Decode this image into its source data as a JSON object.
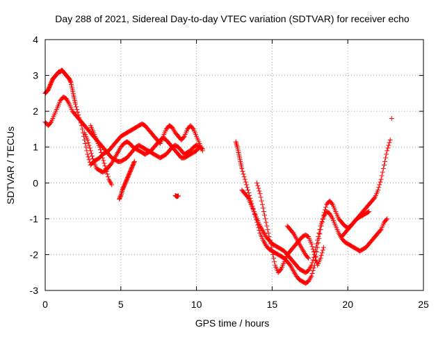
{
  "chart_data": {
    "type": "scatter",
    "title": "Day 288 of 2021, Sidereal Day-to-day VTEC variation (SDTVAR) for receiver echo",
    "xlabel": "GPS time / hours",
    "ylabel": "SDTVAR / TECUs",
    "xlim": [
      0,
      25
    ],
    "ylim": [
      -3,
      4
    ],
    "xticks": [
      "0",
      "5",
      "10",
      "15",
      "20",
      "25"
    ],
    "yticks": [
      "-3",
      "-2",
      "-1",
      "0",
      "1",
      "2",
      "3",
      "4"
    ],
    "grid": true,
    "marker": "+",
    "series": [
      {
        "name": "SDTVAR",
        "color": "#ff0000",
        "segments": [
          {
            "x": [
              0.0,
              0.1,
              0.2,
              0.3,
              0.4,
              0.5,
              0.6,
              0.7,
              0.8,
              0.9,
              1.0,
              1.1,
              1.2,
              1.3,
              1.4,
              1.5,
              1.6,
              1.7,
              1.8,
              1.9,
              2.0,
              2.2,
              2.4,
              2.6,
              2.8,
              3.0,
              3.2,
              3.4,
              3.6,
              3.8,
              4.0,
              4.2,
              4.4,
              4.6,
              4.8,
              5.0,
              5.2,
              5.4,
              5.6,
              5.8,
              6.0,
              6.2,
              6.4,
              6.6,
              6.8,
              7.0,
              7.2,
              7.4,
              7.6,
              7.8,
              8.0,
              8.2,
              8.4,
              8.6,
              8.8,
              9.0,
              9.2,
              9.4,
              9.6,
              9.8,
              10.0,
              10.2,
              10.4
            ],
            "y": [
              2.5,
              2.55,
              2.6,
              2.7,
              2.8,
              2.9,
              2.95,
              3.0,
              3.05,
              3.1,
              3.1,
              3.15,
              3.1,
              3.05,
              3.0,
              2.95,
              2.9,
              2.8,
              2.6,
              2.4,
              2.2,
              1.9,
              1.6,
              1.2,
              0.8,
              0.5,
              0.6,
              0.65,
              0.7,
              0.8,
              0.85,
              0.9,
              1.0,
              1.1,
              1.2,
              1.3,
              1.35,
              1.4,
              1.45,
              1.5,
              1.55,
              1.6,
              1.65,
              1.6,
              1.5,
              1.4,
              1.3,
              1.2,
              1.1,
              1.3,
              1.5,
              1.6,
              1.55,
              1.4,
              1.3,
              1.2,
              1.3,
              1.5,
              1.6,
              1.5,
              1.3,
              1.1,
              0.9
            ]
          },
          {
            "x": [
              0.0,
              0.2,
              0.4,
              0.6,
              0.8,
              1.0,
              1.2,
              1.4,
              1.6,
              1.8,
              2.0,
              2.2,
              2.4,
              2.6,
              2.8,
              3.0,
              3.2,
              3.4,
              3.6,
              3.8,
              4.0,
              4.2,
              4.4,
              4.6,
              4.8,
              5.0,
              5.2,
              5.4,
              5.6,
              5.8,
              6.0,
              6.2,
              6.4,
              6.6,
              6.8,
              7.0,
              7.2,
              7.4,
              7.6,
              7.8,
              8.0,
              8.2,
              8.4,
              8.6,
              8.8,
              9.0,
              9.2,
              9.4,
              9.6,
              9.8,
              10.0,
              10.2,
              10.4
            ],
            "y": [
              1.7,
              1.6,
              1.7,
              1.9,
              2.1,
              2.3,
              2.4,
              2.35,
              2.2,
              2.0,
              1.9,
              1.8,
              1.7,
              1.6,
              1.5,
              1.4,
              1.3,
              1.2,
              1.1,
              1.0,
              0.9,
              0.8,
              0.7,
              0.65,
              0.6,
              0.6,
              0.65,
              0.7,
              0.8,
              0.9,
              1.0,
              1.05,
              1.0,
              0.95,
              0.9,
              0.85,
              0.8,
              0.75,
              0.7,
              0.75,
              0.8,
              0.9,
              1.0,
              1.05,
              1.0,
              0.9,
              0.8,
              0.85,
              0.9,
              1.0,
              1.05,
              1.0,
              0.95
            ]
          },
          {
            "x": [
              2.6,
              2.8,
              3.0,
              3.2,
              3.4,
              3.6,
              3.8,
              4.0,
              4.2,
              4.4,
              4.6,
              4.8,
              5.0,
              5.2,
              5.4,
              5.6,
              5.8,
              6.0,
              6.2,
              6.4,
              6.6,
              6.8,
              7.0,
              7.2,
              7.4,
              7.6,
              7.8,
              8.0,
              8.2,
              8.4,
              8.6,
              8.8,
              9.0,
              9.2,
              9.4,
              9.6,
              9.8,
              10.0,
              10.2
            ],
            "y": [
              1.4,
              1.2,
              0.9,
              0.6,
              0.4,
              0.35,
              0.3,
              0.35,
              0.45,
              0.55,
              0.7,
              0.85,
              1.0,
              1.1,
              1.15,
              1.1,
              1.0,
              0.95,
              0.9,
              0.85,
              0.8,
              0.85,
              0.9,
              1.0,
              1.1,
              1.2,
              1.25,
              1.2,
              1.1,
              1.0,
              0.9,
              0.8,
              0.7,
              0.7,
              0.75,
              0.8,
              0.85,
              0.9,
              1.0
            ]
          },
          {
            "x": [
              3.0,
              3.2,
              3.4,
              3.6,
              3.8,
              4.0,
              4.2,
              4.4
            ],
            "y": [
              1.6,
              1.4,
              1.2,
              1.0,
              0.7,
              0.4,
              0.1,
              -0.05
            ]
          },
          {
            "x": [
              4.9,
              5.0,
              5.1,
              5.2,
              5.3,
              5.4,
              5.5,
              5.6,
              5.7,
              5.8,
              5.9
            ],
            "y": [
              -0.45,
              -0.35,
              -0.2,
              -0.1,
              0.0,
              0.1,
              0.2,
              0.3,
              0.4,
              0.5,
              0.6
            ]
          },
          {
            "x": [
              8.6,
              8.7,
              8.8
            ],
            "y": [
              -0.35,
              -0.38,
              -0.36
            ]
          },
          {
            "x": [
              12.6,
              12.7,
              12.8,
              12.9,
              13.0,
              13.2,
              13.4,
              13.6,
              13.8,
              14.0,
              14.2,
              14.4,
              14.6,
              14.8,
              15.0,
              15.2,
              15.4,
              15.6,
              15.8,
              16.0,
              16.2,
              16.4,
              16.6,
              16.8,
              17.0,
              17.2,
              17.4,
              17.6,
              17.8,
              18.0,
              18.2,
              18.4,
              18.6,
              18.8,
              19.0,
              19.2,
              19.4,
              19.6,
              19.8,
              20.0,
              20.2,
              20.4,
              20.6,
              20.8,
              21.0,
              21.2,
              21.4,
              21.6,
              21.8,
              22.0,
              22.2,
              22.4,
              22.6,
              22.8
            ],
            "y": [
              1.15,
              1.0,
              0.8,
              0.6,
              0.4,
              0.1,
              -0.2,
              -0.5,
              -0.8,
              -1.1,
              -1.4,
              -1.6,
              -1.75,
              -1.85,
              -1.9,
              -1.95,
              -2.0,
              -2.05,
              -2.1,
              -2.2,
              -2.3,
              -2.45,
              -2.6,
              -2.7,
              -2.75,
              -2.8,
              -2.75,
              -2.6,
              -2.3,
              -1.8,
              -1.3,
              -0.9,
              -0.6,
              -0.5,
              -0.6,
              -0.8,
              -1.0,
              -1.1,
              -1.2,
              -1.25,
              -1.2,
              -1.1,
              -1.0,
              -0.9,
              -0.8,
              -0.7,
              -0.6,
              -0.5,
              -0.4,
              -0.2,
              0.1,
              0.5,
              0.9,
              1.2
            ]
          },
          {
            "x": [
              13.0,
              13.2,
              13.4,
              13.6,
              13.8,
              14.0,
              14.2,
              14.4,
              14.6,
              14.8,
              15.0,
              15.2,
              15.4,
              15.6,
              15.8,
              16.0,
              16.2,
              16.4,
              16.6,
              16.8,
              17.0,
              17.2,
              17.4,
              17.6,
              17.8,
              18.0,
              18.2,
              18.4,
              18.6,
              18.8,
              19.0,
              19.2,
              19.4,
              19.6,
              19.8,
              20.0,
              20.2,
              20.4,
              20.6,
              20.8,
              21.0,
              21.2,
              21.4,
              21.6,
              21.8,
              22.0,
              22.2,
              22.4,
              22.6
            ],
            "y": [
              -0.2,
              -0.3,
              -0.4,
              -0.6,
              -0.8,
              -1.0,
              -1.2,
              -1.35,
              -1.5,
              -1.6,
              -1.7,
              -1.75,
              -1.8,
              -1.85,
              -1.9,
              -2.0,
              -2.1,
              -2.2,
              -2.3,
              -2.4,
              -2.45,
              -2.5,
              -2.45,
              -2.3,
              -2.0,
              -1.6,
              -1.2,
              -0.95,
              -0.8,
              -0.85,
              -1.0,
              -1.2,
              -1.4,
              -1.55,
              -1.65,
              -1.7,
              -1.75,
              -1.8,
              -1.85,
              -1.9,
              -1.85,
              -1.8,
              -1.7,
              -1.6,
              -1.5,
              -1.4,
              -1.3,
              -1.1,
              -1.0
            ]
          },
          {
            "x": [
              14.0,
              14.2,
              14.4,
              14.6,
              14.8,
              15.0,
              15.2,
              15.4,
              15.6,
              15.8,
              16.0,
              16.2,
              16.4,
              16.6,
              16.8,
              17.0,
              17.2,
              17.4,
              17.6,
              17.8,
              18.0,
              18.2,
              18.4
            ],
            "y": [
              0.0,
              -0.3,
              -0.7,
              -1.1,
              -1.5,
              -1.9,
              -2.3,
              -2.5,
              -2.4,
              -2.2,
              -2.0,
              -1.9,
              -1.8,
              -1.7,
              -1.6,
              -1.5,
              -1.45,
              -1.5,
              -1.7,
              -2.0,
              -2.3,
              -2.1,
              -1.8
            ]
          },
          {
            "x": [
              16.0,
              16.2,
              16.4,
              16.6,
              16.8,
              17.0,
              17.2,
              17.4
            ],
            "y": [
              -1.2,
              -1.3,
              -1.4,
              -1.55,
              -1.7,
              -1.85,
              -2.0,
              -2.1
            ]
          },
          {
            "x": [
              19.6,
              19.8,
              20.0,
              20.2,
              20.4,
              20.6,
              20.8,
              21.0,
              21.2,
              21.4
            ],
            "y": [
              -1.5,
              -1.4,
              -1.3,
              -1.2,
              -1.1,
              -1.0,
              -0.95,
              -0.9,
              -0.85,
              -0.8
            ]
          },
          {
            "x": [
              22.9
            ],
            "y": [
              1.8
            ]
          }
        ]
      }
    ]
  }
}
